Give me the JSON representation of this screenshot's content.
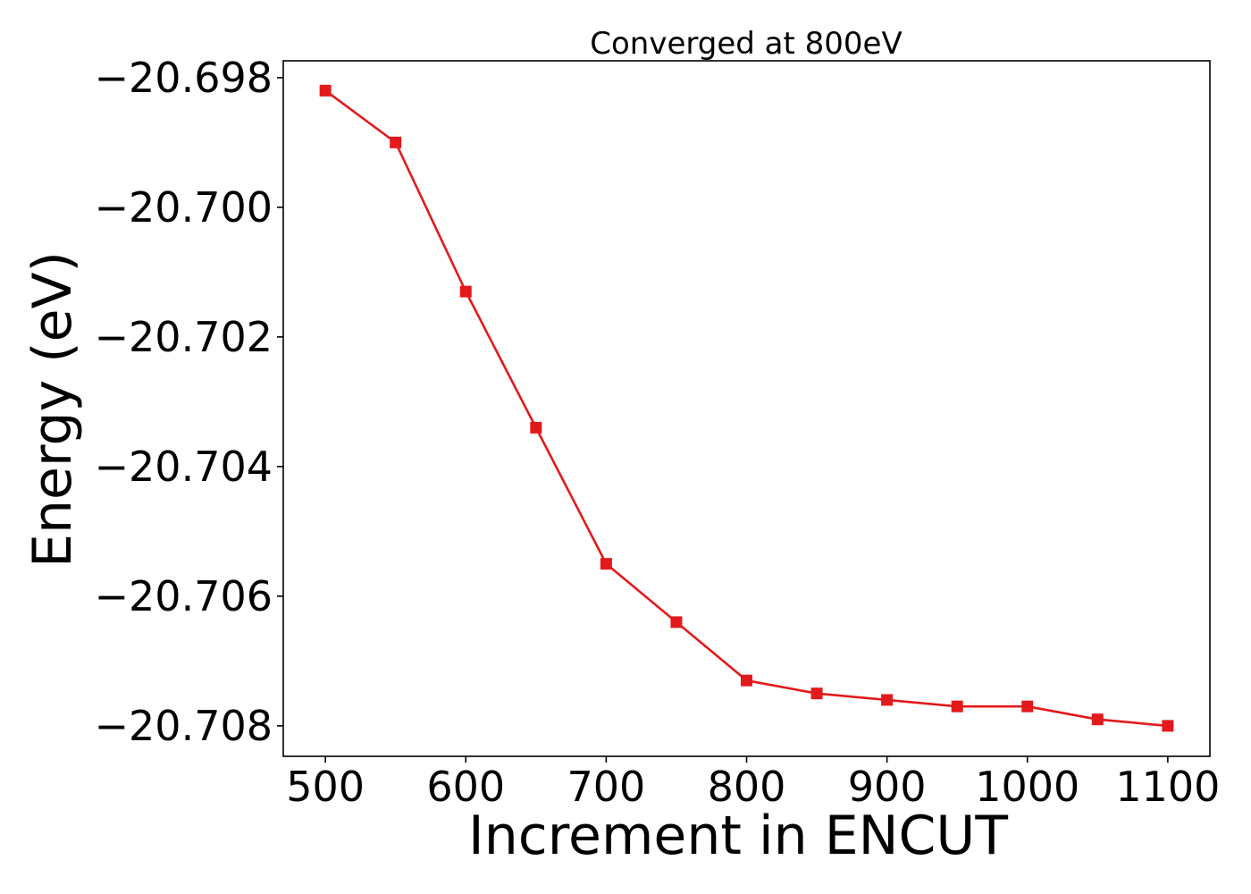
{
  "chart_data": {
    "type": "line",
    "title": "Converged at 800eV",
    "xlabel": "Increment in ENCUT",
    "ylabel": "Energy (eV)",
    "x": [
      500,
      550,
      600,
      650,
      700,
      750,
      800,
      850,
      900,
      950,
      1000,
      1050,
      1100
    ],
    "series": [
      {
        "name": "",
        "color": "#e31a1c",
        "marker": "square",
        "values": [
          -20.6982,
          -20.699,
          -20.7013,
          -20.7034,
          -20.7055,
          -20.7064,
          -20.7073,
          -20.7075,
          -20.7076,
          -20.7077,
          -20.7077,
          -20.7079,
          -20.708
        ]
      }
    ],
    "xticks": [
      500,
      600,
      700,
      800,
      900,
      1000,
      1100
    ],
    "xtick_labels": [
      "500",
      "600",
      "700",
      "800",
      "900",
      "1000",
      "1100"
    ],
    "yticks": [
      -20.698,
      -20.7,
      -20.702,
      -20.704,
      -20.706,
      -20.708
    ],
    "ytick_labels": [
      "−20.698",
      "−20.700",
      "−20.702",
      "−20.704",
      "−20.706",
      "−20.708"
    ],
    "xlim": [
      470,
      1130
    ],
    "ylim": [
      -20.70847,
      -20.69774
    ],
    "grid": false,
    "legend": "none"
  }
}
